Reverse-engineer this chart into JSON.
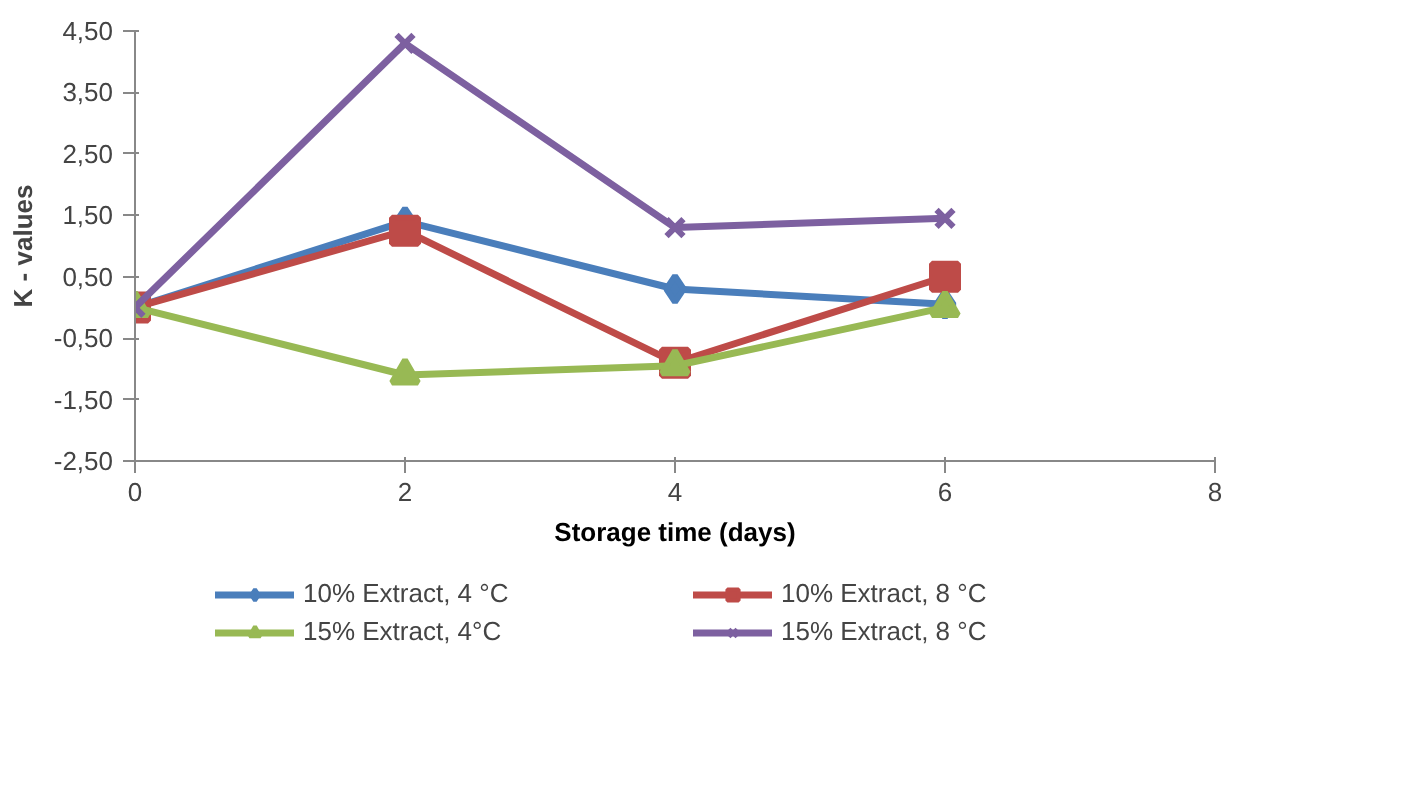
{
  "chart_data": {
    "type": "line",
    "xlabel": "Storage time (days)",
    "ylabel": "K - values",
    "x": [
      0,
      2,
      4,
      6
    ],
    "xlim": [
      0,
      8
    ],
    "xticks": [
      0,
      2,
      4,
      6,
      8
    ],
    "ylim": [
      -2.5,
      4.5
    ],
    "yticks": [
      {
        "value": -2.5,
        "label": "-2,50"
      },
      {
        "value": -1.5,
        "label": "-1,50"
      },
      {
        "value": -0.5,
        "label": "-0,50"
      },
      {
        "value": 0.5,
        "label": "0,50"
      },
      {
        "value": 1.5,
        "label": "1,50"
      },
      {
        "value": 2.5,
        "label": "2,50"
      },
      {
        "value": 3.5,
        "label": "3,50"
      },
      {
        "value": 4.5,
        "label": "4,50"
      }
    ],
    "grid": false,
    "legend": "bottom",
    "line_style": "solid",
    "series": [
      {
        "name": "10% Extract, 4 °C",
        "color": "#4a7ebb",
        "marker": "diamond",
        "values": [
          0,
          1.4,
          0.3,
          0.05
        ]
      },
      {
        "name": "10% Extract, 8 °C",
        "color": "#be4b48",
        "marker": "square",
        "values": [
          0,
          1.25,
          -0.9,
          0.5
        ]
      },
      {
        "name": "15% Extract, 4°C",
        "color": "#98b954",
        "marker": "triangle",
        "values": [
          0,
          -1.1,
          -0.95,
          0
        ]
      },
      {
        "name": "15% Extract, 8 °C",
        "color": "#7d60a0",
        "marker": "cross",
        "values": [
          0,
          4.3,
          1.3,
          1.45
        ]
      }
    ]
  }
}
